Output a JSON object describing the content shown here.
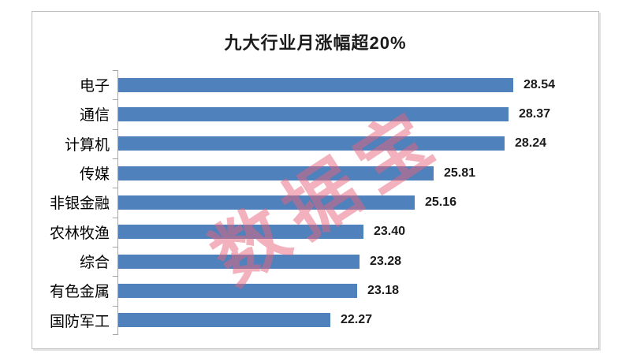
{
  "watermark_text": "数据宝",
  "colors": {
    "bar": "#4f81bd",
    "axis": "#a6a6a6",
    "frame_border": "#bfbfbf",
    "title_text": "#1a1a1a",
    "category_text": "#000000",
    "value_text": "#1a1a1a",
    "watermark": "rgba(230, 100, 124, 0.5)",
    "background": "#ffffff"
  },
  "chart_data": {
    "type": "bar",
    "orientation": "horizontal",
    "title": "九大行业月涨幅超20%",
    "categories": [
      "电子",
      "通信",
      "计算机",
      "传媒",
      "非银金融",
      "农林牧渔",
      "综合",
      "有色金属",
      "国防军工"
    ],
    "values": [
      28.54,
      28.37,
      28.24,
      25.81,
      25.16,
      23.4,
      23.28,
      23.18,
      22.27
    ],
    "value_labels": [
      "28.54",
      "28.37",
      "28.24",
      "25.81",
      "25.16",
      "23.40",
      "23.28",
      "23.18",
      "22.27"
    ],
    "xlim": [
      15,
      30
    ],
    "xlabel": "",
    "ylabel": "",
    "grid": false,
    "legend": false,
    "data_labels": true,
    "watermark": "数据宝"
  }
}
